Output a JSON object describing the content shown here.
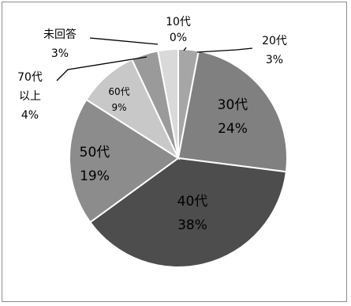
{
  "chart_data": {
    "type": "pie",
    "title": "",
    "start_angle_deg": 0,
    "direction": "clockwise",
    "slices": [
      {
        "label": "10代",
        "value": 0,
        "pct": "0%",
        "color": "#ffffff"
      },
      {
        "label": "20代",
        "value": 3,
        "pct": "3%",
        "color": "#a6a6a6"
      },
      {
        "label": "30代",
        "value": 24,
        "pct": "24%",
        "color": "#808080"
      },
      {
        "label": "40代",
        "value": 38,
        "pct": "38%",
        "color": "#4d4d4d"
      },
      {
        "label": "50代",
        "value": 19,
        "pct": "19%",
        "color": "#8c8c8c"
      },
      {
        "label": "60代",
        "value": 9,
        "pct": "9%",
        "color": "#c8c8c8"
      },
      {
        "label": "70代以上",
        "value": 4,
        "pct": "4%",
        "color": "#9a9a9a"
      },
      {
        "label": "未回答",
        "value": 3,
        "pct": "3%",
        "color": "#d9d9d9"
      }
    ],
    "slice_border_color": "#ffffff",
    "frame_border_color": "#8c8c8c"
  }
}
